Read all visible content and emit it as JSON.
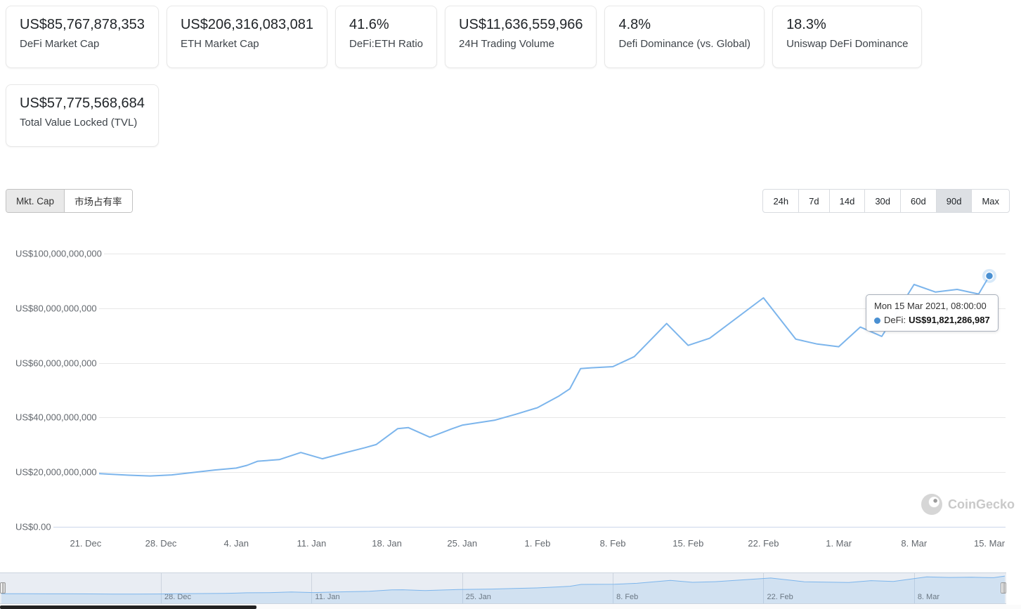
{
  "stats": {
    "cards": [
      {
        "value": "US$85,767,878,353",
        "label": "DeFi Market Cap"
      },
      {
        "value": "US$206,316,083,081",
        "label": "ETH Market Cap"
      },
      {
        "value": "41.6%",
        "label": "DeFi:ETH Ratio"
      },
      {
        "value": "US$11,636,559,966",
        "label": "24H Trading Volume"
      },
      {
        "value": "4.8%",
        "label": "Defi Dominance (vs. Global)"
      },
      {
        "value": "18.3%",
        "label": "Uniswap DeFi Dominance"
      },
      {
        "value": "US$57,775,568,684",
        "label": "Total Value Locked (TVL)"
      }
    ]
  },
  "controls": {
    "chart_tabs": [
      {
        "label": "Mkt. Cap",
        "active": true
      },
      {
        "label": "市场占有率",
        "active": false
      }
    ],
    "ranges": [
      {
        "label": "24h",
        "active": false
      },
      {
        "label": "7d",
        "active": false
      },
      {
        "label": "14d",
        "active": false
      },
      {
        "label": "30d",
        "active": false
      },
      {
        "label": "60d",
        "active": false
      },
      {
        "label": "90d",
        "active": true
      },
      {
        "label": "Max",
        "active": false
      }
    ]
  },
  "chart_data": {
    "type": "line",
    "title": "",
    "xlabel": "",
    "ylabel": "",
    "unit": "USD billions",
    "ylim_billions": [
      0,
      100
    ],
    "grid": true,
    "legend": false,
    "selected_range": "90d",
    "series": [
      {
        "name": "DeFi",
        "color": "#7cb5ec",
        "marker_color": "#4a90d2",
        "points_format": "[days since first point, market cap in USD billions]",
        "points": [
          [
            0,
            20.3
          ],
          [
            2,
            19.9
          ],
          [
            4,
            19.6
          ],
          [
            6,
            19.8
          ],
          [
            8,
            19.3
          ],
          [
            10,
            18.9
          ],
          [
            12,
            18.6
          ],
          [
            14,
            19.0
          ],
          [
            16,
            19.9
          ],
          [
            18,
            20.8
          ],
          [
            20,
            21.5
          ],
          [
            21,
            22.5
          ],
          [
            22,
            24.0
          ],
          [
            24,
            24.6
          ],
          [
            26,
            27.2
          ],
          [
            28,
            24.9
          ],
          [
            30,
            27.0
          ],
          [
            32,
            29.0
          ],
          [
            33,
            30.1
          ],
          [
            35,
            35.9
          ],
          [
            36,
            36.3
          ],
          [
            38,
            32.8
          ],
          [
            40,
            35.8
          ],
          [
            41,
            37.2
          ],
          [
            44,
            39.0
          ],
          [
            46,
            41.2
          ],
          [
            48,
            43.6
          ],
          [
            50,
            47.9
          ],
          [
            51,
            50.5
          ],
          [
            52,
            57.9
          ],
          [
            53,
            58.2
          ],
          [
            55,
            58.6
          ],
          [
            57,
            62.3
          ],
          [
            60,
            74.4
          ],
          [
            62,
            66.4
          ],
          [
            64,
            69.0
          ],
          [
            69,
            83.8
          ],
          [
            72,
            68.7
          ],
          [
            74,
            66.9
          ],
          [
            76,
            65.9
          ],
          [
            78,
            73.1
          ],
          [
            80,
            69.7
          ],
          [
            83,
            88.7
          ],
          [
            85,
            85.9
          ],
          [
            87,
            86.9
          ],
          [
            89,
            85.2
          ],
          [
            90,
            91.82
          ]
        ]
      }
    ],
    "y_ticks": [
      {
        "value": 100,
        "label": "US$100,000,000,000"
      },
      {
        "value": 80,
        "label": "US$80,000,000,000"
      },
      {
        "value": 60,
        "label": "US$60,000,000,000"
      },
      {
        "value": 40,
        "label": "US$40,000,000,000"
      },
      {
        "value": 20,
        "label": "US$20,000,000,000"
      },
      {
        "value": 0,
        "label": "US$0.00"
      }
    ],
    "x_ticks": [
      {
        "day": 6,
        "label": "21. Dec"
      },
      {
        "day": 13,
        "label": "28. Dec"
      },
      {
        "day": 20,
        "label": "4. Jan"
      },
      {
        "day": 27,
        "label": "11. Jan"
      },
      {
        "day": 34,
        "label": "18. Jan"
      },
      {
        "day": 41,
        "label": "25. Jan"
      },
      {
        "day": 48,
        "label": "1. Feb"
      },
      {
        "day": 55,
        "label": "8. Feb"
      },
      {
        "day": 62,
        "label": "15. Feb"
      },
      {
        "day": 69,
        "label": "22. Feb"
      },
      {
        "day": 76,
        "label": "1. Mar"
      },
      {
        "day": 83,
        "label": "8. Mar"
      },
      {
        "day": 90,
        "label": "15. Mar"
      }
    ],
    "highlighted_point": {
      "date": "Mon 15 Mar 2021, 08:00:00",
      "value": "US$91,821,286,987"
    }
  },
  "tooltip": {
    "date": "Mon 15 Mar 2021, 08:00:00",
    "series_label": "DeFi:",
    "value": "US$91,821,286,987",
    "color": "#4a90d2"
  },
  "navigator": {
    "ticks": [
      {
        "day": 13,
        "label": "28. Dec"
      },
      {
        "day": 27,
        "label": "11. Jan"
      },
      {
        "day": 41,
        "label": "25. Jan"
      },
      {
        "day": 55,
        "label": "8. Feb"
      },
      {
        "day": 69,
        "label": "22. Feb"
      },
      {
        "day": 83,
        "label": "8. Mar"
      }
    ]
  },
  "watermark": "CoinGecko"
}
